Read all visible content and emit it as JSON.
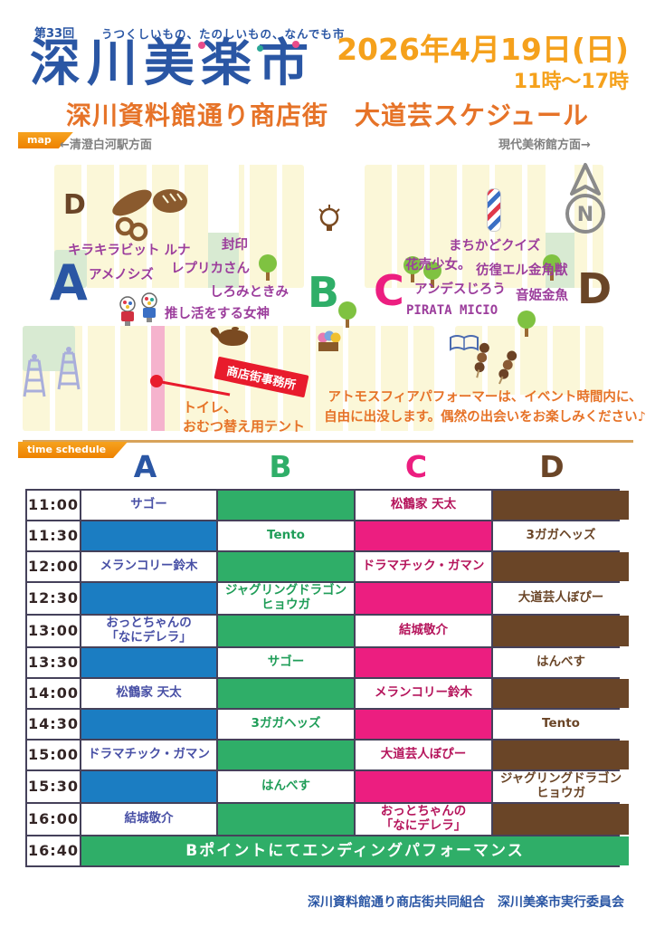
{
  "poster": {
    "edition": "第33回",
    "tagline": "うつくしいもの、たのしいもの、なんでも市",
    "title": "深川美楽市",
    "date": "2026年4月19日(日)",
    "hours": "11時〜17時",
    "subtitle": "深川資料館通り商店街　大道芸スケジュール",
    "footer": "深川資料館通り商店街共同組合　深川美楽市実行委員会"
  },
  "map": {
    "ribbon_label": "map",
    "direction_left": "←清澄白河駅方面",
    "direction_right": "現代美術館方面→",
    "compass_label": "N",
    "small_point_label": "D",
    "points": [
      {
        "label": "A",
        "color": "#2a56a4"
      },
      {
        "label": "B",
        "color": "#2fae68"
      },
      {
        "label": "C",
        "color": "#ec1e80"
      },
      {
        "label": "D",
        "color": "#6a4527"
      }
    ],
    "performers": [
      {
        "text": "キラキラビット ルナ"
      },
      {
        "text": "アメノシズ"
      },
      {
        "text": "封印"
      },
      {
        "text": "レプリカさん"
      },
      {
        "text": "しろみときみ"
      },
      {
        "text": "推し活をする女神"
      },
      {
        "text": "まちかどクイズ"
      },
      {
        "text": "花売少女。"
      },
      {
        "text": "彷徨エル金角獣"
      },
      {
        "text": "アンデスじろう"
      },
      {
        "text": "音姫金魚"
      },
      {
        "text": "PIRATA MICIO"
      }
    ],
    "office_tag": "商店街事務所",
    "toilet_note": "トイレ、\nおむつ替え用テント",
    "atmosphere_note": "アトモスフィアパフォーマーは、イベント時間内に、\n自由に出没します。偶然の出会いをお楽しみください♪",
    "icons": [
      "tree-icon",
      "bread-icon",
      "lightbulb-icon",
      "barber-pole-icon",
      "compass-north-icon",
      "gumball-machine-icon",
      "genie-lamp-icon",
      "fire-tower-icon",
      "flower-box-icon",
      "open-book-icon",
      "dango-icon",
      "location-dot-icon"
    ]
  },
  "schedule": {
    "ribbon_label": "time schedule",
    "columns": [
      {
        "label": "A",
        "fill": "#1b7dc2",
        "text_color": "#474fa5"
      },
      {
        "label": "B",
        "fill": "#2fae68",
        "text_color": "#1f9d58"
      },
      {
        "label": "C",
        "fill": "#ec1e80",
        "text_color": "#b5145b"
      },
      {
        "label": "D",
        "fill": "#6a4527",
        "text_color": "#6a4527"
      }
    ],
    "rows": [
      {
        "time": "11:00",
        "A": "サゴー",
        "B": null,
        "C": "松鶴家 天太",
        "D": null
      },
      {
        "time": "11:30",
        "A": null,
        "B": "Tento",
        "C": null,
        "D": "3ガガヘッズ"
      },
      {
        "time": "12:00",
        "A": "メランコリー鈴木",
        "B": null,
        "C": "ドラマチック・ガマン",
        "D": null
      },
      {
        "time": "12:30",
        "A": null,
        "B": "ジャグリングドラゴン\nヒョウガ",
        "C": null,
        "D": "大道芸人ぼぴー"
      },
      {
        "time": "13:00",
        "A": "おっとちゃんの\n「なにデレラ」",
        "B": null,
        "C": "結城敬介",
        "D": null
      },
      {
        "time": "13:30",
        "A": null,
        "B": "サゴー",
        "C": null,
        "D": "はんべす"
      },
      {
        "time": "14:00",
        "A": "松鶴家 天太",
        "B": null,
        "C": "メランコリー鈴木",
        "D": null
      },
      {
        "time": "14:30",
        "A": null,
        "B": "3ガガヘッズ",
        "C": null,
        "D": "Tento"
      },
      {
        "time": "15:00",
        "A": "ドラマチック・ガマン",
        "B": null,
        "C": "大道芸人ぼぴー",
        "D": null
      },
      {
        "time": "15:30",
        "A": null,
        "B": "はんべす",
        "C": null,
        "D": "ジャグリングドラゴン\nヒョウガ"
      },
      {
        "time": "16:00",
        "A": "結城敬介",
        "B": null,
        "C": "おっとちゃんの\n「なにデレラ」",
        "D": null
      },
      {
        "time": "16:40",
        "full": "Bポイントにてエンディングパフォーマンス"
      }
    ]
  },
  "colors": {
    "logo_blue": "#2a56a4",
    "date_orange": "#f5a11c",
    "accent_orange": "#e67328",
    "ribbon_orange": "#ee8200",
    "name_purple": "#9c3e9c",
    "office_red": "#e81b2c",
    "table_border": "#45415a"
  }
}
